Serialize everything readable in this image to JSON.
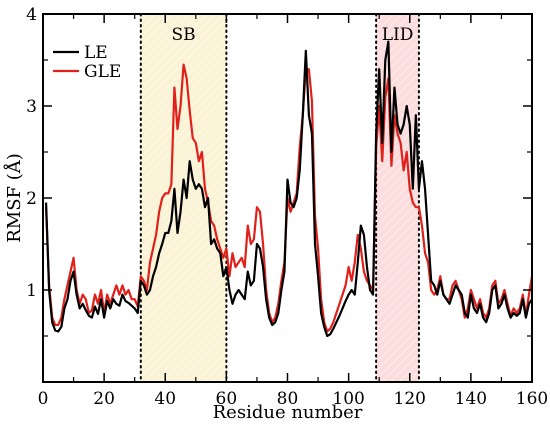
{
  "chart_data": {
    "type": "line",
    "title": "",
    "xlabel": "Residue number",
    "ylabel": "RMSF (Å)",
    "xlim": [
      0,
      160
    ],
    "ylim": [
      0,
      4
    ],
    "xticks": [
      0,
      20,
      40,
      60,
      80,
      100,
      120,
      140,
      160
    ],
    "yticks": [
      1,
      2,
      3,
      4
    ],
    "grid": false,
    "legend_position": "top-left",
    "regions": [
      {
        "label": "SB",
        "x_start": 32,
        "x_end": 60,
        "color": "#fbf3d6"
      },
      {
        "label": "LID",
        "x_start": 109,
        "x_end": 123,
        "color": "#fbdddd"
      }
    ],
    "series": [
      {
        "name": "LE",
        "color": "#000000",
        "x": [
          1,
          2,
          3,
          4,
          5,
          6,
          7,
          8,
          9,
          10,
          11,
          12,
          13,
          14,
          15,
          16,
          17,
          18,
          19,
          20,
          21,
          22,
          23,
          24,
          25,
          26,
          27,
          28,
          29,
          30,
          31,
          32,
          33,
          34,
          35,
          36,
          37,
          38,
          39,
          40,
          41,
          42,
          43,
          44,
          45,
          46,
          47,
          48,
          49,
          50,
          51,
          52,
          53,
          54,
          55,
          56,
          57,
          58,
          59,
          60,
          61,
          62,
          63,
          64,
          65,
          66,
          67,
          68,
          69,
          70,
          71,
          72,
          73,
          74,
          75,
          76,
          77,
          78,
          79,
          80,
          81,
          82,
          83,
          84,
          85,
          86,
          87,
          88,
          89,
          90,
          91,
          92,
          93,
          94,
          95,
          96,
          97,
          98,
          99,
          100,
          101,
          102,
          103,
          104,
          105,
          106,
          107,
          108,
          109,
          110,
          111,
          112,
          113,
          114,
          115,
          116,
          117,
          118,
          119,
          120,
          121,
          122,
          123,
          124,
          125,
          126,
          127,
          128,
          129,
          130,
          131,
          132,
          133,
          134,
          135,
          136,
          137,
          138,
          139,
          140,
          141,
          142,
          143,
          144,
          145,
          146,
          147,
          148,
          149,
          150,
          151,
          152,
          153,
          154,
          155,
          156,
          157,
          158,
          159,
          160
        ],
        "y": [
          1.95,
          1.0,
          0.65,
          0.56,
          0.55,
          0.6,
          0.8,
          0.9,
          1.1,
          1.2,
          0.95,
          0.8,
          0.85,
          0.78,
          0.72,
          0.7,
          0.82,
          0.74,
          0.9,
          0.7,
          0.88,
          0.8,
          0.9,
          0.85,
          0.83,
          0.95,
          0.88,
          0.86,
          0.83,
          0.8,
          0.75,
          1.1,
          1.05,
          0.95,
          1.0,
          1.15,
          1.25,
          1.4,
          1.5,
          1.62,
          1.62,
          1.75,
          2.1,
          1.62,
          1.85,
          2.2,
          2.0,
          2.4,
          2.2,
          2.1,
          2.15,
          2.1,
          1.9,
          2.0,
          1.5,
          1.55,
          1.45,
          1.4,
          1.15,
          1.25,
          1.0,
          0.85,
          0.95,
          1.0,
          0.95,
          0.9,
          1.2,
          1.05,
          1.1,
          1.5,
          1.45,
          1.25,
          0.9,
          0.7,
          0.62,
          0.65,
          0.75,
          1.0,
          1.2,
          2.2,
          1.95,
          1.9,
          2.0,
          2.3,
          2.9,
          3.6,
          2.9,
          2.7,
          1.5,
          1.15,
          0.75,
          0.6,
          0.5,
          0.52,
          0.58,
          0.65,
          0.72,
          0.8,
          0.88,
          0.95,
          1.0,
          0.95,
          1.3,
          1.7,
          1.6,
          1.25,
          1.0,
          0.95,
          2.7,
          3.4,
          2.6,
          3.5,
          3.7,
          2.5,
          3.2,
          2.8,
          2.7,
          2.8,
          3.0,
          2.8,
          2.1,
          2.9,
          2.1,
          2.4,
          2.1,
          1.6,
          1.1,
          1.05,
          0.95,
          1.1,
          0.95,
          0.9,
          0.85,
          0.95,
          1.05,
          1.0,
          0.95,
          0.75,
          0.7,
          0.95,
          0.8,
          0.75,
          0.85,
          0.7,
          0.65,
          0.75,
          1.0,
          1.05,
          0.8,
          0.85,
          0.95,
          0.8,
          0.7,
          0.75,
          0.72,
          0.75,
          0.9,
          0.7,
          0.85,
          0.9
        ]
      },
      {
        "name": "GLE",
        "color": "#e0201b",
        "x": [
          1,
          2,
          3,
          4,
          5,
          6,
          7,
          8,
          9,
          10,
          11,
          12,
          13,
          14,
          15,
          16,
          17,
          18,
          19,
          20,
          21,
          22,
          23,
          24,
          25,
          26,
          27,
          28,
          29,
          30,
          31,
          32,
          33,
          34,
          35,
          36,
          37,
          38,
          39,
          40,
          41,
          42,
          43,
          44,
          45,
          46,
          47,
          48,
          49,
          50,
          51,
          52,
          53,
          54,
          55,
          56,
          57,
          58,
          59,
          60,
          61,
          62,
          63,
          64,
          65,
          66,
          67,
          68,
          69,
          70,
          71,
          72,
          73,
          74,
          75,
          76,
          77,
          78,
          79,
          80,
          81,
          82,
          83,
          84,
          85,
          86,
          87,
          88,
          89,
          90,
          91,
          92,
          93,
          94,
          95,
          96,
          97,
          98,
          99,
          100,
          101,
          102,
          103,
          104,
          105,
          106,
          107,
          108,
          109,
          110,
          111,
          112,
          113,
          114,
          115,
          116,
          117,
          118,
          119,
          120,
          121,
          122,
          123,
          124,
          125,
          126,
          127,
          128,
          129,
          130,
          131,
          132,
          133,
          134,
          135,
          136,
          137,
          138,
          139,
          140,
          141,
          142,
          143,
          144,
          145,
          146,
          147,
          148,
          149,
          150,
          151,
          152,
          153,
          154,
          155,
          156,
          157,
          158,
          159,
          160
        ],
        "y": [
          1.9,
          1.05,
          0.7,
          0.62,
          0.62,
          0.7,
          0.9,
          1.05,
          1.2,
          1.35,
          1.0,
          0.85,
          0.95,
          0.9,
          0.75,
          0.78,
          0.95,
          0.85,
          1.0,
          0.75,
          0.95,
          0.85,
          0.95,
          1.05,
          0.95,
          1.05,
          0.95,
          1.0,
          0.9,
          0.9,
          0.82,
          1.15,
          1.1,
          1.0,
          1.3,
          1.45,
          1.6,
          1.85,
          2.0,
          2.05,
          2.05,
          2.15,
          3.2,
          2.75,
          3.0,
          3.45,
          3.3,
          2.95,
          2.65,
          2.6,
          2.4,
          2.5,
          2.1,
          1.95,
          1.75,
          1.7,
          1.55,
          1.45,
          1.35,
          1.45,
          1.15,
          1.4,
          1.25,
          1.3,
          1.35,
          1.25,
          1.7,
          1.5,
          1.55,
          1.9,
          1.85,
          1.5,
          1.0,
          0.75,
          0.65,
          0.7,
          0.85,
          1.1,
          1.3,
          2.0,
          1.85,
          1.95,
          2.05,
          2.55,
          2.9,
          3.4,
          3.4,
          3.05,
          1.8,
          1.45,
          0.9,
          0.65,
          0.55,
          0.58,
          0.65,
          0.75,
          0.85,
          0.95,
          1.05,
          1.25,
          1.1,
          1.3,
          1.6,
          1.45,
          1.2,
          1.1,
          1.05,
          1.0,
          2.55,
          3.0,
          2.4,
          3.1,
          3.3,
          2.35,
          2.9,
          2.7,
          2.6,
          2.3,
          2.5,
          2.1,
          1.95,
          1.9,
          1.9,
          1.7,
          1.4,
          1.3,
          1.0,
          0.95,
          1.0,
          1.15,
          0.95,
          0.9,
          0.9,
          1.05,
          1.1,
          1.0,
          0.9,
          0.7,
          0.8,
          1.0,
          0.9,
          0.8,
          0.9,
          0.75,
          0.7,
          0.8,
          1.05,
          1.1,
          0.85,
          0.9,
          1.0,
          0.85,
          0.72,
          0.8,
          0.75,
          0.8,
          0.95,
          0.72,
          0.95,
          1.15
        ]
      }
    ]
  }
}
